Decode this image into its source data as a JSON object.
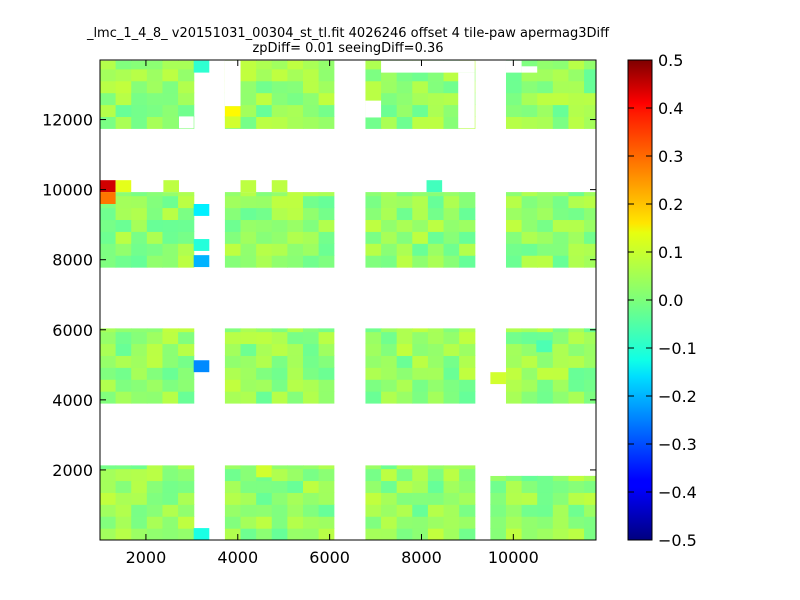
{
  "chart_data": {
    "type": "heatmap",
    "title_line1": "_lmc_1_4_8_ v20151031_00304_st_tl.fit 4026246 offset 4 tile-paw apermag3Diff",
    "title_line2": "zpDiff= 0.01 seeingDiff=0.36",
    "xlabel": "",
    "ylabel": "",
    "xlim": [
      1000,
      11800
    ],
    "ylim": [
      0,
      13700
    ],
    "x_ticks": [
      2000,
      4000,
      6000,
      8000,
      10000
    ],
    "x_tick_labels": [
      "2000",
      "4000",
      "6000",
      "8000",
      "10000"
    ],
    "y_ticks": [
      2000,
      4000,
      6000,
      8000,
      10000,
      12000
    ],
    "y_tick_labels": [
      "2000",
      "4000",
      "6000",
      "8000",
      "10000",
      "12000"
    ],
    "colorbar": {
      "colormap": "jet",
      "vmin": -0.5,
      "vmax": 0.5,
      "ticks": [
        0.5,
        0.4,
        0.3,
        0.2,
        0.1,
        0.0,
        -0.1,
        -0.2,
        -0.3,
        -0.4,
        -0.5
      ],
      "tick_labels": [
        "0.5",
        "0.4",
        "0.3",
        "0.2",
        "0.1",
        "0.0",
        "−0.1",
        "−0.2",
        "−0.3",
        "−0.4",
        "−0.5"
      ]
    },
    "grid": false,
    "cell_size": 340,
    "baseline_value": 0.02,
    "detectors": [
      {
        "x0": 1000,
        "x1": 3040,
        "y0": 0,
        "y1": 2130
      },
      {
        "x0": 3720,
        "x1": 6090,
        "y0": 0,
        "y1": 2130
      },
      {
        "x0": 6780,
        "x1": 9160,
        "y0": 0,
        "y1": 2130
      },
      {
        "x0": 9500,
        "x1": 11800,
        "y0": 0,
        "y1": 1830
      },
      {
        "x0": 1000,
        "x1": 3040,
        "y0": 3910,
        "y1": 6040
      },
      {
        "x0": 3720,
        "x1": 6090,
        "y0": 3910,
        "y1": 6040
      },
      {
        "x0": 6780,
        "x1": 9160,
        "y0": 3910,
        "y1": 6040
      },
      {
        "x0": 9840,
        "x1": 11800,
        "y0": 3910,
        "y1": 6040
      },
      {
        "x0": 1000,
        "x1": 3040,
        "y0": 7790,
        "y1": 9930
      },
      {
        "x0": 3720,
        "x1": 6090,
        "y0": 7790,
        "y1": 9930
      },
      {
        "x0": 6780,
        "x1": 9160,
        "y0": 7790,
        "y1": 9930
      },
      {
        "x0": 9840,
        "x1": 11800,
        "y0": 7790,
        "y1": 9930
      },
      {
        "x0": 1000,
        "x1": 3040,
        "y0": 11750,
        "y1": 13680
      },
      {
        "x0": 3720,
        "x1": 6090,
        "y0": 11750,
        "y1": 13680
      },
      {
        "x0": 6780,
        "x1": 9160,
        "y0": 11750,
        "y1": 13680
      },
      {
        "x0": 9840,
        "x1": 11800,
        "y0": 11750,
        "y1": 13680
      }
    ],
    "highlight_cells": [
      {
        "x": 1000,
        "y": 9930,
        "value": 0.42
      },
      {
        "x": 1000,
        "y": 9590,
        "value": 0.26
      },
      {
        "x": 1340,
        "y": 9930,
        "value": 0.1
      },
      {
        "x": 2380,
        "y": 9930,
        "value": 0.06
      },
      {
        "x": 3040,
        "y": 9250,
        "value": -0.14
      },
      {
        "x": 3040,
        "y": 8250,
        "value": -0.09
      },
      {
        "x": 3040,
        "y": 7790,
        "value": -0.2
      },
      {
        "x": 3040,
        "y": 4790,
        "value": -0.24
      },
      {
        "x": 3040,
        "y": 0,
        "value": -0.1
      },
      {
        "x": 3040,
        "y": 13340,
        "value": -0.08
      },
      {
        "x": 3720,
        "y": 12040,
        "value": 0.13
      },
      {
        "x": 3720,
        "y": 11750,
        "value": 0.08
      },
      {
        "x": 4060,
        "y": 9930,
        "value": 0.06
      },
      {
        "x": 4740,
        "y": 9930,
        "value": 0.06
      },
      {
        "x": 8110,
        "y": 9930,
        "value": -0.06
      },
      {
        "x": 9500,
        "y": 4450,
        "value": 0.08
      },
      {
        "x": 4400,
        "y": 1790,
        "value": 0.08
      },
      {
        "x": 10500,
        "y": 5360,
        "value": -0.05
      }
    ],
    "gap_cells": [
      {
        "x": 6780,
        "y": 12060,
        "w": 340,
        "h": 480
      },
      {
        "x": 7120,
        "y": 13340,
        "w": 2040,
        "h": 340
      },
      {
        "x": 8800,
        "y": 11750,
        "w": 360,
        "h": 1590
      },
      {
        "x": 9840,
        "y": 13340,
        "w": 340,
        "h": 340
      },
      {
        "x": 10180,
        "y": 13340,
        "w": 340,
        "h": 180
      },
      {
        "x": 2720,
        "y": 11750,
        "w": 320,
        "h": 340
      },
      {
        "x": 9500,
        "y": 1830,
        "w": 340,
        "h": 300
      },
      {
        "x": 3720,
        "y": 12380,
        "w": 340,
        "h": 1300
      }
    ]
  }
}
